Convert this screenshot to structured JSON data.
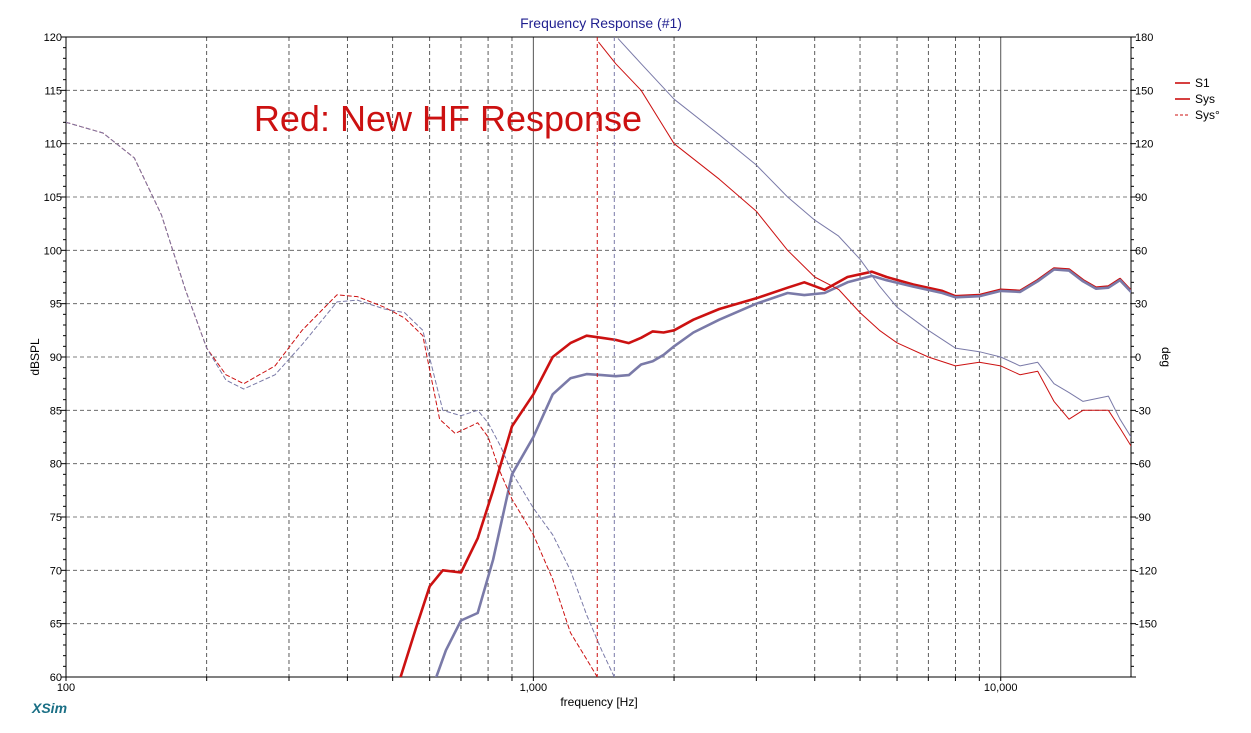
{
  "chart_data": {
    "type": "line",
    "title": "Frequency Response (#1)",
    "xlabel": "frequency [Hz]",
    "ylabel": "dBSPL",
    "y2label": "deg",
    "xscale": "log",
    "xlim": [
      100,
      19000
    ],
    "ylim": [
      60,
      120
    ],
    "y2lim": [
      -180,
      180
    ],
    "x_tick_labels": [
      {
        "value": 100,
        "label": "100"
      },
      {
        "value": 1000,
        "label": "1,000"
      },
      {
        "value": 10000,
        "label": "10,000"
      }
    ],
    "y_ticks": [
      60,
      65,
      70,
      75,
      80,
      85,
      90,
      95,
      100,
      105,
      110,
      115,
      120
    ],
    "y2_ticks": [
      -150,
      -120,
      -90,
      -60,
      -30,
      0,
      30,
      60,
      90,
      120,
      150,
      180
    ],
    "grid": true,
    "legend_position": "top-right",
    "legend": [
      "S1",
      "Sys",
      "Sys°"
    ],
    "annotation": "Red: New HF Response",
    "colors": {
      "new": "#cc1111",
      "old": "#7a7aa8",
      "title": "#1f1f8f",
      "brand": "#1a6f85"
    },
    "series": [
      {
        "name": "Sys",
        "axis": "left",
        "style": "thick",
        "color": "#cc1111",
        "x": [
          520,
          560,
          600,
          640,
          700,
          760,
          820,
          900,
          1000,
          1100,
          1200,
          1300,
          1400,
          1500,
          1600,
          1700,
          1800,
          1900,
          2000,
          2200,
          2500,
          3000,
          3500,
          3800,
          4200,
          4700,
          5300,
          5700,
          6500,
          7500,
          8000,
          9000,
          10000,
          11000,
          12000,
          13000,
          14000,
          15000,
          16000,
          17000,
          18000,
          19000
        ],
        "y": [
          60,
          64.5,
          68.5,
          70,
          69.8,
          73,
          77.5,
          83.5,
          86.5,
          90,
          91.3,
          92,
          91.8,
          91.6,
          91.3,
          91.8,
          92.4,
          92.3,
          92.5,
          93.5,
          94.5,
          95.5,
          96.5,
          97,
          96.3,
          97.5,
          98,
          97.5,
          96.8,
          96.2,
          95.7,
          95.8,
          96.3,
          96.2,
          97.2,
          98.3,
          98.2,
          97.2,
          96.5,
          96.6,
          97.3,
          96.2
        ]
      },
      {
        "name": "",
        "axis": "left",
        "style": "thick",
        "color": "#7a7aa8",
        "x": [
          620,
          650,
          700,
          760,
          820,
          900,
          1000,
          1100,
          1200,
          1300,
          1400,
          1500,
          1600,
          1700,
          1800,
          1900,
          2000,
          2200,
          2500,
          3000,
          3500,
          3800,
          4200,
          4700,
          5300,
          5700,
          6500,
          7500,
          8000,
          9000,
          10000,
          11000,
          12000,
          13000,
          14000,
          15000,
          16000,
          17000,
          18000,
          19000
        ],
        "y": [
          60,
          62.5,
          65.3,
          66,
          71,
          79,
          82.5,
          86.5,
          88,
          88.4,
          88.3,
          88.2,
          88.3,
          89.3,
          89.6,
          90.2,
          91,
          92.3,
          93.5,
          95,
          96,
          95.8,
          96,
          97,
          97.6,
          97.2,
          96.6,
          96,
          95.6,
          95.7,
          96.2,
          96.1,
          97.1,
          98.2,
          98.1,
          97.1,
          96.4,
          96.5,
          97.2,
          96.1
        ]
      },
      {
        "name": "Sys°",
        "axis": "right",
        "style": "dashed",
        "color": "#cc1111",
        "x": [
          100,
          120,
          140,
          160,
          180,
          200,
          220,
          240,
          280,
          320,
          380,
          420,
          480,
          530,
          580,
          630,
          680,
          720,
          760,
          800,
          850,
          900,
          1000,
          1100,
          1200,
          1300,
          1370
        ],
        "y": [
          132,
          126,
          112,
          80,
          38,
          5,
          -10,
          -15,
          -5,
          15,
          35,
          34,
          28,
          22,
          12,
          -35,
          -43,
          -40,
          -37,
          -45,
          -65,
          -80,
          -100,
          -125,
          -155,
          -170,
          -180
        ]
      },
      {
        "name": "",
        "axis": "right",
        "style": "dashed",
        "color": "#7a7aa8",
        "x": [
          100,
          120,
          140,
          160,
          180,
          200,
          220,
          240,
          280,
          320,
          380,
          420,
          480,
          530,
          580,
          640,
          700,
          760,
          800,
          850,
          900,
          1000,
          1100,
          1200,
          1300,
          1400,
          1490
        ],
        "y": [
          132,
          126,
          112,
          80,
          38,
          5,
          -13,
          -18,
          -10,
          7,
          31,
          32,
          27,
          25,
          15,
          -30,
          -33,
          -30,
          -37,
          -50,
          -65,
          -85,
          -100,
          -120,
          -145,
          -165,
          -180
        ]
      },
      {
        "name": "S1",
        "axis": "right",
        "style": "thin",
        "color": "#cc1111",
        "x": [
          1380,
          1500,
          1700,
          2000,
          2500,
          3000,
          3500,
          4000,
          4500,
          5000,
          5500,
          6000,
          7000,
          8000,
          9000,
          10000,
          11000,
          12000,
          13000,
          14000,
          15000,
          17000,
          18000,
          19000
        ],
        "y": [
          177,
          165,
          150,
          120,
          100,
          82,
          60,
          45,
          38,
          25,
          15,
          8,
          0,
          -5,
          -3,
          -5,
          -10,
          -8,
          -25,
          -35,
          -30,
          -30,
          -40,
          -50
        ]
      },
      {
        "name": "",
        "axis": "right",
        "style": "thin",
        "color": "#7a7aa8",
        "x": [
          1520,
          1700,
          2000,
          2500,
          3000,
          3500,
          4000,
          4500,
          5000,
          5500,
          6000,
          7000,
          8000,
          9000,
          10000,
          11000,
          12000,
          13000,
          14000,
          15000,
          17000,
          18000,
          19000
        ],
        "y": [
          179,
          165,
          145,
          125,
          108,
          90,
          77,
          68,
          55,
          40,
          28,
          15,
          5,
          3,
          0,
          -5,
          -3,
          -15,
          -20,
          -25,
          -22,
          -35,
          -45
        ]
      }
    ]
  },
  "branding": {
    "logo_text": "XSim"
  }
}
